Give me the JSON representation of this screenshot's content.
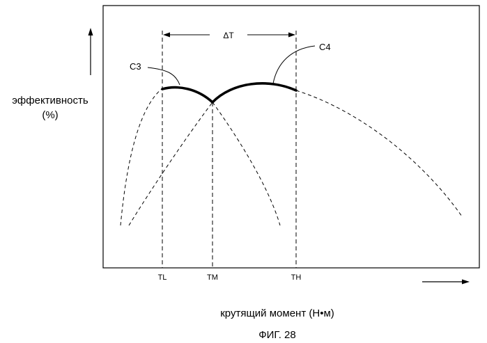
{
  "figure": {
    "caption": "ФИГ. 28",
    "x_axis_label": "крутящий момент (Н•м)",
    "y_axis_label_line1": "эффективность",
    "y_axis_label_line2": "(%)",
    "delta_label": "ΔT",
    "curve_labels": {
      "c3": "C3",
      "c4": "C4"
    },
    "tick_labels": {
      "tl": "TL",
      "tm": "TM",
      "th": "TH"
    }
  },
  "colors": {
    "line": "#000000",
    "background": "#ffffff"
  }
}
